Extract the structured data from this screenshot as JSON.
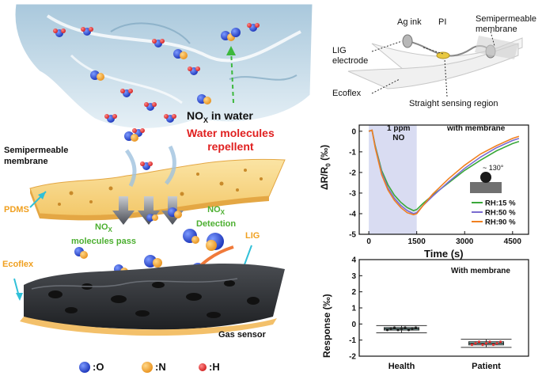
{
  "left_panel": {
    "nox_in_water": "NO",
    "nox_in_water_sub": "X",
    "nox_in_water_suffix": " in water",
    "water_repellent_line1": "Water molecules",
    "water_repellent_line2": "repellent",
    "membrane_line1": "Semipermeable",
    "membrane_line2": "membrane",
    "pdms": "PDMS",
    "nox_pass_line1": "NO",
    "nox_pass_sub": "X",
    "nox_pass_line2": "molecules pass",
    "nox_detect_line1": "NO",
    "nox_detect_sub": "X",
    "nox_detect_line2": "Detection",
    "lig": "LIG",
    "ecoflex": "Ecoflex",
    "gas_sensor": "Gas sensor",
    "legend": [
      {
        "symbol": ":O",
        "color": "#2040d0"
      },
      {
        "symbol": ":N",
        "color": "#f5a623"
      },
      {
        "symbol": ":H",
        "color": "#e83030"
      }
    ],
    "colors": {
      "red_text": "#e02020",
      "green_text": "#4caf30",
      "orange_text": "#f0a020",
      "cyan_arrow": "#30c0d8"
    }
  },
  "device": {
    "ag_ink": "Ag ink",
    "pi": "PI",
    "membrane_line1": "Semipermeable",
    "membrane_line2": "membrane",
    "lig_line1": "LIG",
    "lig_line2": "electrode",
    "ecoflex": "Ecoflex",
    "sensing_region": "Straight sensing region"
  },
  "chart_top": {
    "annotation_line1": "1 ppm",
    "annotation_line2": "NO",
    "condition": "with membrane",
    "ylabel": "ΔR/R",
    "ylabel_sub": "0",
    "ylabel_unit": " (‰)",
    "xlabel": "Time (s)",
    "contact_angle": "~ 130°",
    "yticks": [
      "0",
      "-1",
      "-2",
      "-3",
      "-4",
      "-5"
    ],
    "xticks": [
      "0",
      "1500",
      "3000",
      "4500"
    ]
  },
  "chart_bottom": {
    "condition": "With membrane",
    "ylabel": "Response (‰)",
    "yticks": [
      "4",
      "3",
      "2",
      "1",
      "0",
      "-1",
      "-2"
    ],
    "xticks": [
      "Health",
      "Patient"
    ]
  },
  "chart_data": [
    {
      "type": "line",
      "xlabel": "Time (s)",
      "ylabel": "ΔR/R0 (‰)",
      "xlim": [
        -300,
        5000
      ],
      "ylim": [
        -5,
        0.3
      ],
      "shaded_region": [
        0,
        1500
      ],
      "legend_position": "bottom-right",
      "series": [
        {
          "name": "RH:15 %",
          "color": "#3aa83a",
          "x": [
            0,
            100,
            200,
            400,
            600,
            800,
            1000,
            1200,
            1400,
            1500,
            1700,
            2000,
            2500,
            3000,
            3500,
            4000,
            4500,
            4700
          ],
          "y": [
            0,
            0.05,
            -0.7,
            -1.9,
            -2.6,
            -3.1,
            -3.45,
            -3.7,
            -3.85,
            -3.8,
            -3.5,
            -3.1,
            -2.5,
            -1.9,
            -1.4,
            -0.95,
            -0.6,
            -0.5
          ]
        },
        {
          "name": "RH:50 %",
          "color": "#7a6bd0",
          "x": [
            0,
            100,
            200,
            400,
            600,
            800,
            1000,
            1200,
            1400,
            1500,
            1700,
            2000,
            2500,
            3000,
            3500,
            4000,
            4500,
            4700
          ],
          "y": [
            0,
            0.05,
            -0.75,
            -2.0,
            -2.75,
            -3.25,
            -3.6,
            -3.85,
            -4.0,
            -3.95,
            -3.6,
            -3.15,
            -2.45,
            -1.8,
            -1.25,
            -0.8,
            -0.45,
            -0.35
          ]
        },
        {
          "name": "RH:90 %",
          "color": "#f08020",
          "x": [
            0,
            100,
            200,
            400,
            600,
            800,
            1000,
            1200,
            1400,
            1500,
            1700,
            2000,
            2500,
            3000,
            3500,
            4000,
            4500,
            4700
          ],
          "y": [
            0,
            0.05,
            -0.8,
            -2.1,
            -2.85,
            -3.35,
            -3.7,
            -3.95,
            -4.05,
            -4.0,
            -3.6,
            -3.05,
            -2.3,
            -1.65,
            -1.1,
            -0.7,
            -0.35,
            -0.25
          ]
        }
      ]
    },
    {
      "type": "box",
      "ylabel": "Response (‰)",
      "ylim": [
        -2,
        4
      ],
      "categories": [
        "Health",
        "Patient"
      ],
      "boxes": [
        {
          "category": "Health",
          "q1": -0.38,
          "median": -0.3,
          "q3": -0.22,
          "min": -0.55,
          "max": -0.1,
          "mean": -0.3
        },
        {
          "category": "Patient",
          "q1": -1.3,
          "median": -1.2,
          "q3": -1.1,
          "min": -1.45,
          "max": -0.95,
          "mean": -1.2
        }
      ]
    }
  ]
}
